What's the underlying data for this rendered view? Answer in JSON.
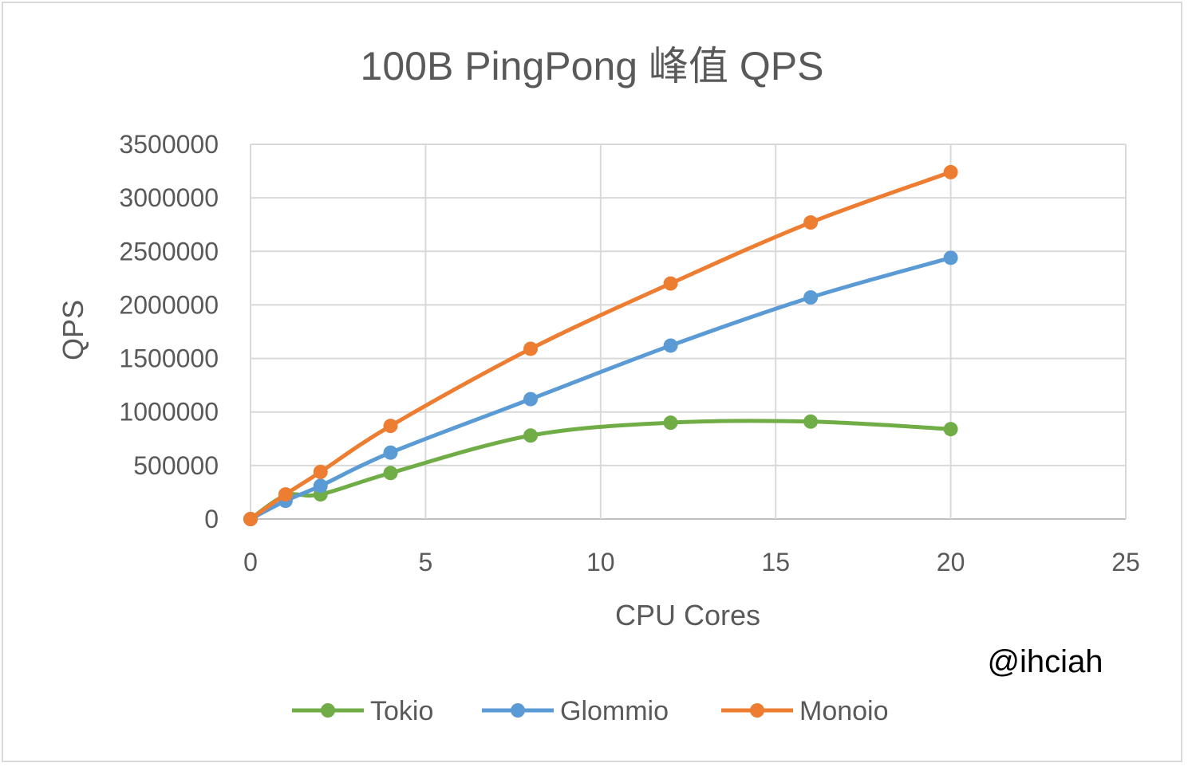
{
  "chart_data": {
    "type": "line",
    "title": "100B PingPong 峰值 QPS",
    "xlabel": "CPU Cores",
    "ylabel": "QPS",
    "xlim": [
      0,
      25
    ],
    "ylim": [
      0,
      3500000
    ],
    "x_ticks": [
      "0",
      "5",
      "10",
      "15",
      "20",
      "25"
    ],
    "y_ticks": [
      "0",
      "500000",
      "1000000",
      "1500000",
      "2000000",
      "2500000",
      "3000000",
      "3500000"
    ],
    "grid": true,
    "legend_position": "bottom",
    "smooth": true,
    "series": [
      {
        "name": "Tokio",
        "color": "#70ad47",
        "x": [
          0,
          1,
          2,
          4,
          8,
          12,
          16,
          20
        ],
        "values": [
          0,
          220000,
          230000,
          430000,
          780000,
          900000,
          910000,
          840000
        ]
      },
      {
        "name": "Glommio",
        "color": "#5b9bd5",
        "x": [
          0,
          1,
          2,
          4,
          8,
          12,
          16,
          20
        ],
        "values": [
          0,
          170000,
          310000,
          620000,
          1120000,
          1620000,
          2070000,
          2440000
        ]
      },
      {
        "name": "Monoio",
        "color": "#ed7d31",
        "x": [
          0,
          1,
          2,
          4,
          8,
          12,
          16,
          20
        ],
        "values": [
          0,
          230000,
          440000,
          870000,
          1590000,
          2200000,
          2770000,
          3240000
        ]
      }
    ]
  },
  "watermark": "@ihciah"
}
